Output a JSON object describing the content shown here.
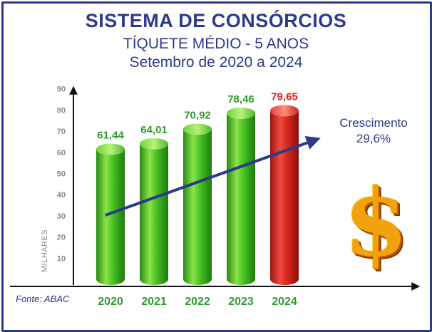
{
  "header": {
    "title": "SISTEMA DE CONSÓRCIOS",
    "subtitle_line1": "TÍQUETE MÉDIO - 5 ANOS",
    "subtitle_line2": "Setembro de 2020 a 2024"
  },
  "source": "Fonte: ABAC",
  "growth": {
    "label": "Crescimento",
    "value": "29,6%"
  },
  "icon": "dollar-sign-icon",
  "colors": {
    "title": "#2d3a8c",
    "bar_green": "#3fb81f",
    "bar_red": "#d8261f",
    "label_green": "#2e9a2e",
    "label_red": "#d8261f",
    "arrow": "#2d3a8c"
  },
  "chart_data": {
    "type": "bar",
    "categories": [
      "2020",
      "2021",
      "2022",
      "2023",
      "2024"
    ],
    "values": [
      61.44,
      64.01,
      70.92,
      78.46,
      79.65
    ],
    "value_labels": [
      "61,44",
      "64,01",
      "70,92",
      "78,46",
      "79,65"
    ],
    "highlight_index": 4,
    "ylabel": "MILHARES",
    "ylim": [
      0,
      90
    ],
    "yticks": [
      10,
      20,
      30,
      40,
      50,
      60,
      70,
      80,
      90
    ],
    "grid": false,
    "legend": "none",
    "trend_arrow": true
  }
}
